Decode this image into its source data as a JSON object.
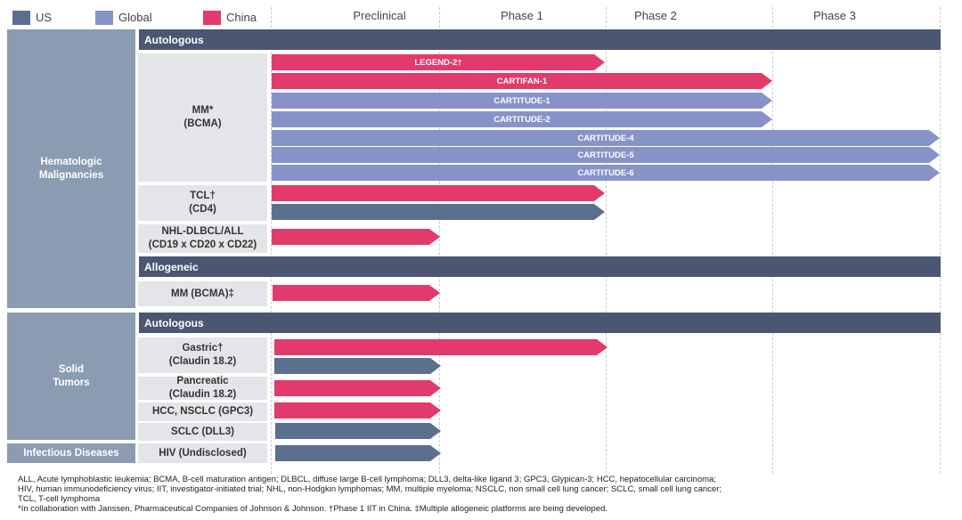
{
  "legend": [
    {
      "label": "US",
      "color": "#5b6f8f"
    },
    {
      "label": "Global",
      "color": "#8793c8"
    },
    {
      "label": "China",
      "color": "#e23a6a"
    }
  ],
  "phases": [
    "Preclinical",
    "Phase 1",
    "Phase 2",
    "Phase 3"
  ],
  "categories": {
    "hematologic": "Hematologic\nMalignancies",
    "solid": "Solid\nTumors",
    "infectious": "Infectious Diseases"
  },
  "bands": {
    "auto1": "Autologous",
    "allo": "Allogeneic",
    "auto2": "Autologous"
  },
  "indications": {
    "mm_bcma": "MM*\n(BCMA)",
    "tcl": "TCL†\n(CD4)",
    "nhl": "NHL-DLBCL/ALL\n(CD19 x CD20 x CD22)",
    "mm_allo": "MM (BCMA)‡",
    "gastric": "Gastric†\n(Claudin 18.2)",
    "pancreatic": "Pancreatic\n(Claudin 18.2)",
    "hcc": "HCC, NSCLC (GPC3)",
    "sclc": "SCLC (DLL3)",
    "hiv": "HIV (Undisclosed)"
  },
  "programs": {
    "legend2": "LEGEND-2†",
    "cartifan1": "CARTIFAN-1",
    "cartitude1": "CARTITUDE-1",
    "cartitude2": "CARTITUDE-2",
    "cartitude4": "CARTITUDE-4",
    "cartitude5": "CARTITUDE-5",
    "cartitude6": "CARTITUDE-6"
  },
  "footnotes": [
    "ALL, Acute lymphoblastic leukemia; BCMA, B-cell maturation antigen; DLBCL, diffuse large B-cell lymphoma; DLL3, delta-like ligand 3; GPC3, Glypican-3; HCC, hepatocellular carcinoma;",
    "HIV, human immunodeficiency virus; IIT, investigator-initiated trial; NHL, non-Hodgkin lymphomas; MM, multiple myeloma; NSCLC, non small cell lung cancer; SCLC, small cell lung cancer;",
    "TCL, T-cell lymphoma",
    "*In collaboration with Janssen, Pharmaceutical Companies of Johnson & Johnson. †Phase 1 IIT in China. ‡Multiple allogeneic platforms are being developed."
  ]
}
